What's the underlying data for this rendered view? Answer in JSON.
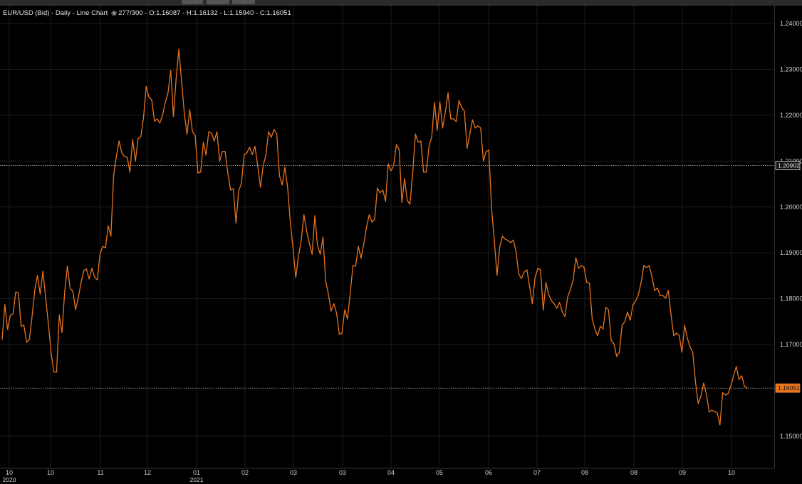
{
  "header": {
    "instrument": "EUR/USD (Bid)",
    "interval": "Daily",
    "chart_type_label": "Line Chart",
    "visibility_icon": "eye-icon",
    "count": "277/300",
    "open": "O:1.16087",
    "high": "H:1.16132",
    "low": "L:1.15940",
    "close": "C:1.16051"
  },
  "colors": {
    "line": "#e8741e",
    "background": "#000000",
    "grid": "#1c1c1c",
    "last_price_badge": "#e8741e",
    "crosshair_badge": "#d9d9d9"
  },
  "chart_data": {
    "type": "line",
    "title": "EUR/USD (Bid) - Daily - Line Chart",
    "xlabel": "",
    "ylabel": "",
    "ylim": [
      1.14,
      1.245
    ],
    "grid": true,
    "legend": "none",
    "y_ticks": [
      "1.24000",
      "1.23000",
      "1.22000",
      "1.21000",
      "1.20000",
      "1.19000",
      "1.18000",
      "1.17000",
      "1.15000"
    ],
    "x_ticks": [
      {
        "label": "10",
        "year": "2020"
      },
      {
        "label": "10",
        "year": ""
      },
      {
        "label": "11",
        "year": ""
      },
      {
        "label": "12",
        "year": ""
      },
      {
        "label": "01",
        "year": "2021"
      },
      {
        "label": "02",
        "year": ""
      },
      {
        "label": "03",
        "year": ""
      },
      {
        "label": "03",
        "year": ""
      },
      {
        "label": "04",
        "year": ""
      },
      {
        "label": "05",
        "year": ""
      },
      {
        "label": "06",
        "year": ""
      },
      {
        "label": "07",
        "year": ""
      },
      {
        "label": "08",
        "year": ""
      },
      {
        "label": "08",
        "year": ""
      },
      {
        "label": "09",
        "year": ""
      },
      {
        "label": "10",
        "year": ""
      }
    ],
    "reference_lines": [
      {
        "value": 1.20902,
        "label": "1.20902",
        "style": "dotted"
      },
      {
        "value": 1.16051,
        "label": "1.16051",
        "style": "dotted",
        "last_price": true
      }
    ],
    "series": [
      {
        "values": [
          1.1711,
          1.1787,
          1.1733,
          1.1764,
          1.1767,
          1.1815,
          1.1812,
          1.174,
          1.1742,
          1.1705,
          1.1711,
          1.1761,
          1.1818,
          1.1851,
          1.181,
          1.186,
          1.1802,
          1.1745,
          1.1683,
          1.164,
          1.164,
          1.1764,
          1.1726,
          1.1815,
          1.1871,
          1.1823,
          1.1816,
          1.1776,
          1.1802,
          1.1834,
          1.1861,
          1.1865,
          1.1843,
          1.1866,
          1.1847,
          1.1841,
          1.1897,
          1.1914,
          1.1911,
          1.1959,
          1.1936,
          1.2068,
          1.211,
          1.2144,
          1.2118,
          1.211,
          1.2108,
          1.2076,
          1.2147,
          1.21,
          1.2149,
          1.2153,
          1.2195,
          1.2263,
          1.2239,
          1.2234,
          1.2187,
          1.2192,
          1.2183,
          1.22,
          1.2228,
          1.2249,
          1.2298,
          1.2197,
          1.228,
          1.2344,
          1.2273,
          1.2204,
          1.2158,
          1.2212,
          1.2164,
          1.2156,
          1.2074,
          1.2076,
          1.2141,
          1.2113,
          1.2164,
          1.2161,
          1.2144,
          1.2164,
          1.21,
          1.2121,
          1.2121,
          1.2074,
          1.2037,
          1.204,
          1.1965,
          1.2035,
          1.2051,
          1.2114,
          1.2118,
          1.213,
          1.2114,
          1.2132,
          1.209,
          1.2043,
          1.209,
          1.2113,
          1.2164,
          1.2152,
          1.2169,
          1.2159,
          1.2068,
          1.2048,
          1.2087,
          1.2043,
          1.1965,
          1.1908,
          1.1846,
          1.1893,
          1.1927,
          1.1983,
          1.1947,
          1.192,
          1.1897,
          1.1981,
          1.1916,
          1.1897,
          1.1934,
          1.1838,
          1.181,
          1.1773,
          1.1789,
          1.1768,
          1.1722,
          1.1725,
          1.1776,
          1.1756,
          1.181,
          1.1872,
          1.1871,
          1.1914,
          1.1888,
          1.1919,
          1.1955,
          1.1983,
          1.1967,
          1.1973,
          1.2041,
          1.2031,
          1.2037,
          1.2012,
          1.2094,
          1.2079,
          1.209,
          1.2136,
          1.2125,
          1.201,
          1.2062,
          1.2014,
          1.2006,
          1.2074,
          1.2159,
          1.2141,
          1.2144,
          1.2076,
          1.2076,
          1.2133,
          1.2153,
          1.2228,
          1.2167,
          1.2229,
          1.2172,
          1.2208,
          1.2249,
          1.2192,
          1.2192,
          1.2186,
          1.2232,
          1.2217,
          1.2209,
          1.2128,
          1.2159,
          1.219,
          1.2172,
          1.2177,
          1.2172,
          1.21,
          1.2121,
          1.2124,
          1.1996,
          1.1928,
          1.1851,
          1.1913,
          1.1936,
          1.193,
          1.1927,
          1.1922,
          1.1928,
          1.1903,
          1.1854,
          1.1844,
          1.1858,
          1.1863,
          1.1826,
          1.1789,
          1.1846,
          1.1866,
          1.1863,
          1.1775,
          1.1835,
          1.1809,
          1.1796,
          1.1789,
          1.1779,
          1.1792,
          1.1771,
          1.1761,
          1.1804,
          1.182,
          1.1841,
          1.1889,
          1.1866,
          1.1872,
          1.1869,
          1.1835,
          1.1834,
          1.1756,
          1.1734,
          1.1719,
          1.174,
          1.1734,
          1.1781,
          1.1776,
          1.1709,
          1.1702,
          1.1674,
          1.1683,
          1.1742,
          1.175,
          1.1771,
          1.1753,
          1.1787,
          1.1795,
          1.1809,
          1.1835,
          1.1872,
          1.1868,
          1.1872,
          1.1847,
          1.1818,
          1.1823,
          1.1807,
          1.1807,
          1.1801,
          1.1818,
          1.1765,
          1.1719,
          1.1725,
          1.172,
          1.1683,
          1.1742,
          1.1714,
          1.1695,
          1.1683,
          1.1618,
          1.1571,
          1.1587,
          1.1616,
          1.1593,
          1.1553,
          1.1557,
          1.1554,
          1.1551,
          1.1525,
          1.1595,
          1.159,
          1.1593,
          1.161,
          1.1632,
          1.1652,
          1.1624,
          1.1632,
          1.1609,
          1.1605
        ]
      }
    ]
  }
}
